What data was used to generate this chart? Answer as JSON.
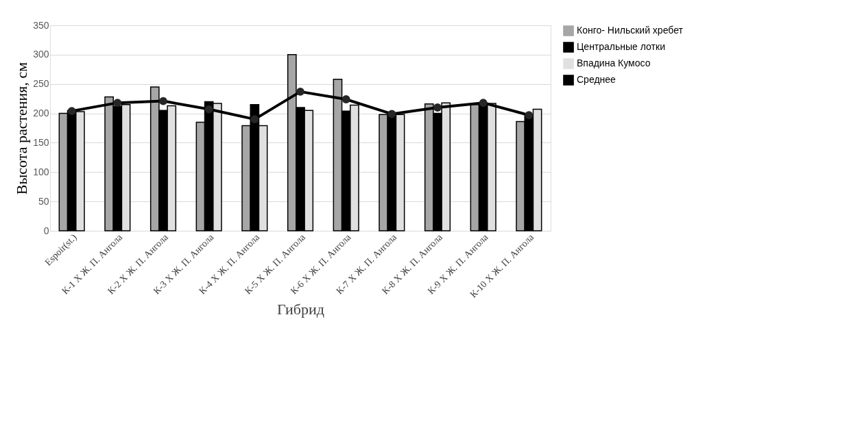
{
  "chart_data": {
    "type": "bar",
    "xlabel": "Гибрид",
    "ylabel": "Высота растения, см",
    "categories": [
      "Espoir(st.)",
      "К-1 Х Ж. П. Ангола",
      "К-2 Х Ж. П. Ангола",
      "К-3 Х Ж. П. Ангола",
      "К-4 Х Ж. П. Ангола",
      "К-5 Х Ж. П. Ангола",
      "К-6 Х Ж. П. Ангола",
      "К-7 Х Ж. П. Ангола",
      "К-8 Х Ж. П. Ангола",
      "К-9 Х Ж. П. Ангола",
      "К-10 Х Ж. П. Ангола"
    ],
    "series": [
      {
        "name": "Конго- Нильский хребет",
        "color": "#a6a6a6",
        "values": [
          200,
          228,
          245,
          185,
          179,
          300,
          258,
          198,
          216,
          215,
          186
        ]
      },
      {
        "name": "Центральные лотки",
        "color": "#000000",
        "values": [
          205,
          212,
          205,
          220,
          215,
          210,
          204,
          200,
          200,
          218,
          198
        ]
      },
      {
        "name": "Впадина Кумосо",
        "color": "#e0e0e0",
        "values": [
          203,
          215,
          213,
          217,
          179,
          205,
          214,
          198,
          218,
          217,
          207
        ]
      },
      {
        "name": "Среднее",
        "type": "line",
        "color": "#000000",
        "marker": "circle",
        "line_style": "solid",
        "values": [
          204,
          218,
          221,
          207,
          190,
          237,
          224,
          199,
          210,
          218,
          197
        ]
      }
    ],
    "ylim": [
      0,
      350
    ],
    "yticks": [
      0,
      50,
      100,
      150,
      200,
      250,
      300,
      350
    ],
    "grid": "y",
    "legend": "right"
  }
}
